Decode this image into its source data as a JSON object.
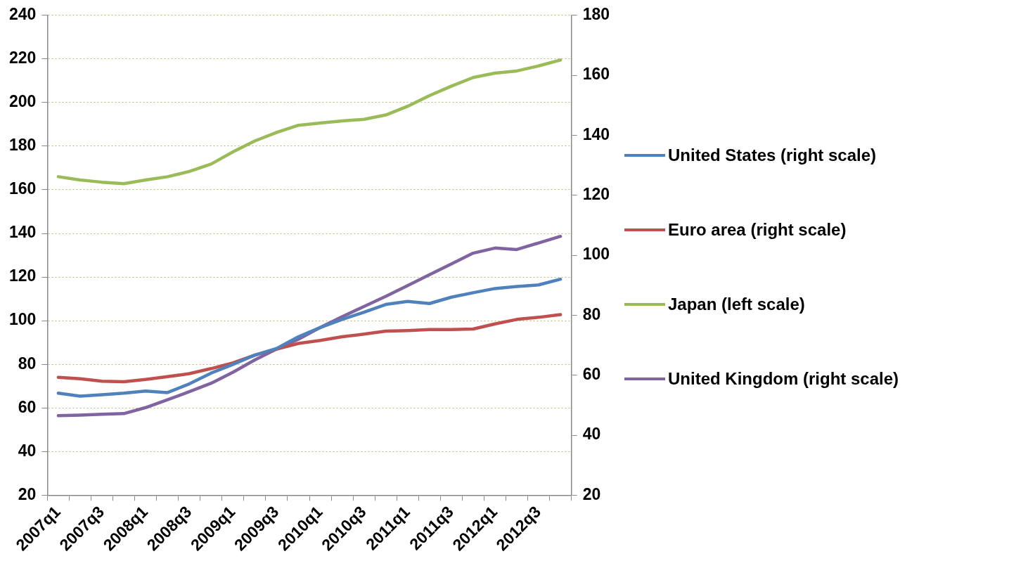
{
  "chart_data": {
    "type": "line",
    "categories": [
      "2007q1",
      null,
      "2007q3",
      null,
      "2008q1",
      null,
      "2008q3",
      null,
      "2009q1",
      null,
      "2009q3",
      null,
      "2010q1",
      null,
      "2010q3",
      null,
      "2011q1",
      null,
      "2011q3",
      null,
      "2012q1",
      null,
      "2012q3",
      null
    ],
    "series": [
      {
        "name": "United States (right scale)",
        "color": "#4f81bd",
        "axis": "y2",
        "values": [
          54,
          53,
          53.5,
          54,
          54.7,
          54.2,
          57.1,
          60.7,
          63.6,
          66.7,
          68.9,
          72.8,
          75.9,
          78.6,
          81,
          83.6,
          84.6,
          83.9,
          86,
          87.5,
          88.9,
          89.6,
          90.1,
          92
        ]
      },
      {
        "name": "Euro area (right scale)",
        "color": "#c0504d",
        "axis": "y2",
        "values": [
          59.3,
          58.8,
          58,
          57.8,
          58.6,
          59.5,
          60.5,
          62.2,
          64.1,
          66.7,
          68.7,
          70.6,
          71.6,
          72.8,
          73.7,
          74.7,
          74.9,
          75.2,
          75.2,
          75.4,
          77.1,
          78.6,
          79.3,
          80.2
        ]
      },
      {
        "name": "Japan (left scale)",
        "color": "#9bbb59",
        "axis": "y",
        "values": [
          166,
          164.5,
          163.5,
          162.8,
          164.5,
          166,
          168.4,
          171.8,
          177.4,
          182.4,
          186.3,
          189.6,
          190.6,
          191.6,
          192.3,
          194.3,
          198.3,
          203.2,
          207.5,
          211.5,
          213.5,
          214.5,
          216.8,
          219.5
        ]
      },
      {
        "name": "United Kingdom (right scale)",
        "color": "#8064a2",
        "axis": "y2",
        "values": [
          46.5,
          46.7,
          47,
          47.2,
          49.2,
          51.8,
          54.5,
          57.3,
          61,
          65.1,
          68.7,
          72,
          75.9,
          79.5,
          82.9,
          86.3,
          89.9,
          93.5,
          97.1,
          100.7,
          102.4,
          101.9,
          104.1,
          106.3
        ]
      }
    ],
    "ylim": [
      20,
      240
    ],
    "yticks": [
      20,
      40,
      60,
      80,
      100,
      120,
      140,
      160,
      180,
      200,
      220,
      240
    ],
    "y2lim": [
      20,
      180
    ],
    "y2ticks": [
      20,
      40,
      60,
      80,
      100,
      120,
      140,
      160,
      180
    ],
    "grid": "y",
    "legend": "right",
    "marker": "none",
    "line_style": "solid"
  }
}
